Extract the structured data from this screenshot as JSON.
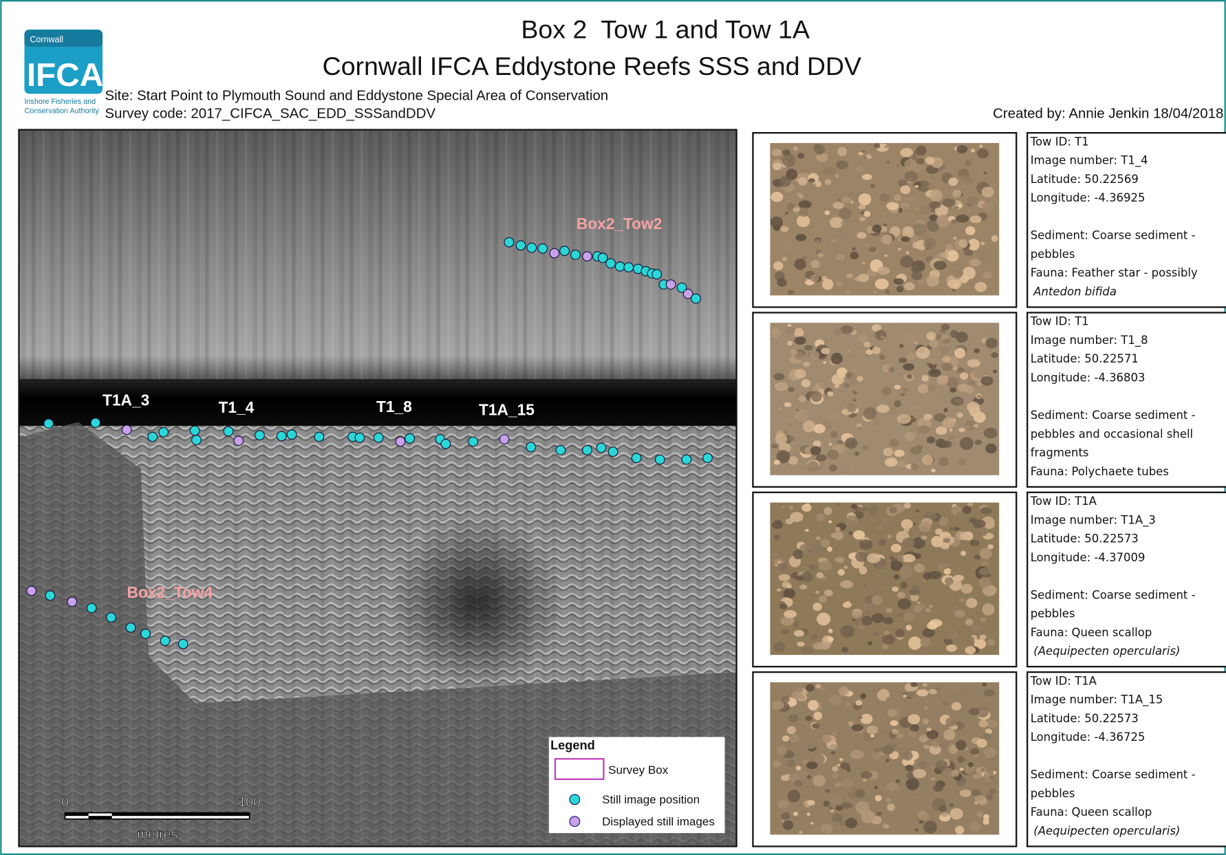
{
  "header": {
    "title": "Box 2  Tow 1 and Tow 1A",
    "subtitle": "Cornwall IFCA Eddystone Reefs SSS and DDV",
    "site": "Site: Start Point to Plymouth Sound and Eddystone Special Area of Conservation",
    "survey_code": "Survey code: 2017_CIFCA_SAC_EDD_SSSandDDV",
    "created_by": "Created by: Annie Jenkin 18/04/2018"
  },
  "logo": {
    "top": "Cornwall",
    "main": "IFCA",
    "line1": "Inshore Fisheries and",
    "line2": "Conservation Authority"
  },
  "map": {
    "labels": [
      "Box2_Tow2",
      "T1A_3",
      "T1_4",
      "T1_8",
      "T1A_15",
      "Box2_Tow4"
    ],
    "legend": {
      "title": "Legend",
      "items": [
        "Survey Box",
        "Still image position",
        "Displayed still images"
      ]
    },
    "scale": {
      "start": "0",
      "end": "100",
      "unit": "metres"
    }
  },
  "panels": [
    {
      "lines": [
        "Tow ID: T1",
        "Image number: T1_4",
        "Latitude: 50.22569",
        "Longitude: -4.36925",
        "Sediment: Coarse sediment -",
        "pebbles",
        "Fauna: Feather star - possibly"
      ],
      "species": "Antedon bifida"
    },
    {
      "lines": [
        "Tow ID: T1",
        "Image number: T1_8",
        "Latitude: 50.22571",
        "Longitude: -4.36803",
        "Sediment: Coarse sediment -",
        "pebbles and occasional shell",
        "fragments",
        "Fauna: Polychaete tubes"
      ]
    },
    {
      "lines": [
        "Tow ID: T1A",
        "Image number: T1A_3",
        "Latitude: 50.22573",
        "Longitude: -4.37009",
        "Sediment: Coarse sediment -",
        "pebbles",
        "Fauna: Queen scallop"
      ],
      "species": "(Aequipecten opercularis)"
    },
    {
      "lines": [
        "Tow ID: T1A",
        "Image number: T1A_15",
        "Latitude: 50.22573",
        "Longitude: -4.36725",
        "Sediment: Coarse sediment -",
        "pebbles",
        "Fauna: Queen scallop"
      ],
      "species": "(Aequipecten opercularis)"
    }
  ]
}
